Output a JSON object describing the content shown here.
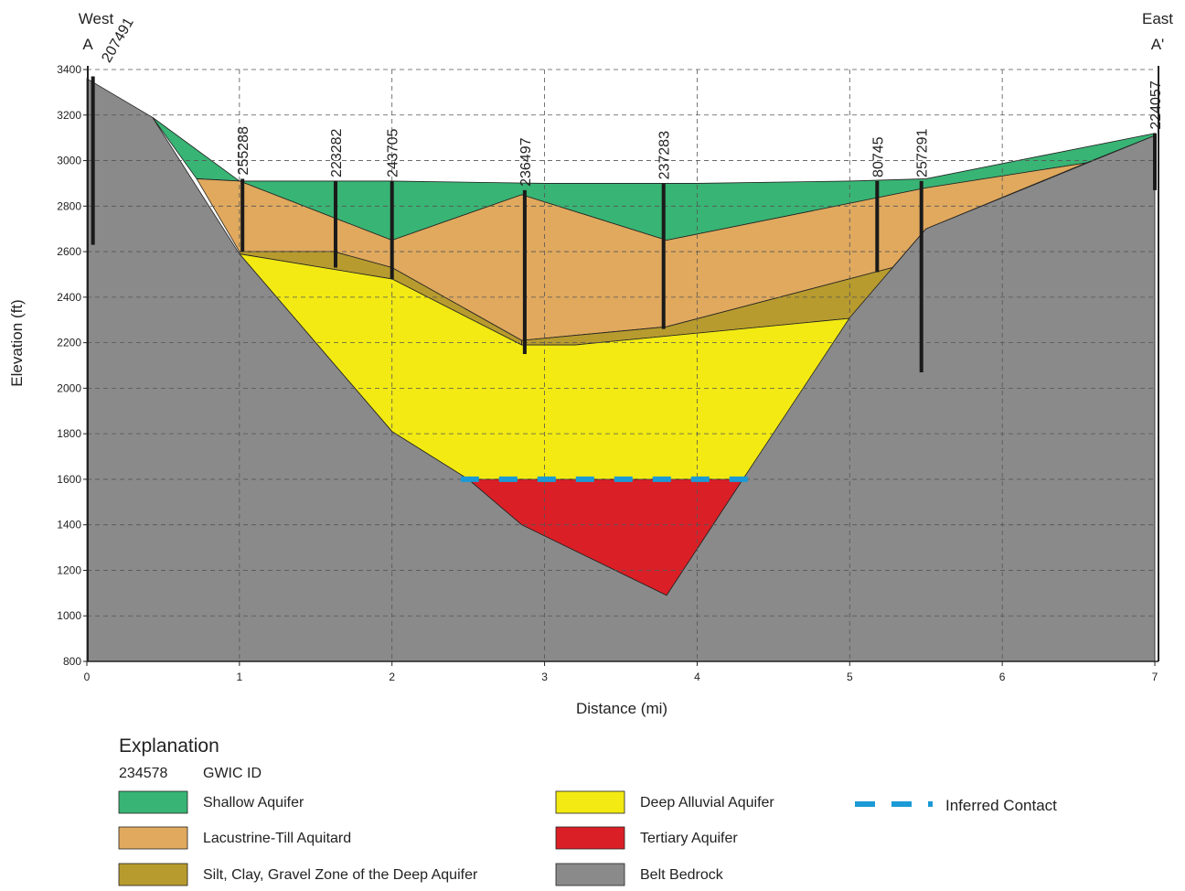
{
  "chart_data": {
    "type": "cross-section",
    "title_left": "West",
    "label_left": "A",
    "title_right": "East",
    "label_right": "A'",
    "x_label": "Distance (mi)",
    "y_label": "Elevation (ft)",
    "xlim": [
      0,
      7
    ],
    "ylim": [
      800,
      3400
    ],
    "xticks": [
      0,
      1,
      2,
      3,
      4,
      5,
      6,
      7
    ],
    "yticks": [
      800,
      1000,
      1200,
      1400,
      1600,
      1800,
      2000,
      2200,
      2400,
      2600,
      2800,
      3000,
      3200,
      3400
    ],
    "grid": true,
    "layers": [
      {
        "name": "Shallow Aquifer",
        "color": "#38b474",
        "polygons": [
          {
            "x": [
              0.43,
              1.0,
              2.0,
              3.0,
              4.0,
              5.0,
              5.5,
              7.0,
              7.0,
              6.55,
              5.5,
              3.8,
              2.85,
              2.0,
              1.0,
              0.72
            ],
            "y": [
              3190,
              2910,
              2910,
              2900,
              2900,
              2910,
              2920,
              3120,
              3110,
              2990,
              2880,
              2650,
              2850,
              2650,
              2910,
              2920
            ]
          }
        ]
      },
      {
        "name": "Lacustrine-Till Aquitard",
        "color": "#e0a95e",
        "polygons": [
          {
            "x": [
              0.72,
              1.0,
              2.0,
              2.85,
              3.8,
              5.5,
              6.55,
              5.5,
              5.28,
              3.8,
              2.85,
              2.0,
              1.62,
              1.0
            ],
            "y": [
              2920,
              2910,
              2650,
              2850,
              2650,
              2880,
              2990,
              2700,
              2530,
              2270,
              2210,
              2530,
              2600,
              2600
            ]
          }
        ]
      },
      {
        "name": "Silt, Clay, Gravel Zone of the Deep Aquifer",
        "color": "#b79b2e",
        "polygons": [
          {
            "x": [
              1.0,
              1.62,
              2.0,
              2.85,
              2.85,
              2.0,
              1.0
            ],
            "y": [
              2600,
              2600,
              2530,
              2210,
              2190,
              2480,
              2590
            ]
          },
          {
            "x": [
              2.85,
              3.8,
              5.28,
              5.05,
              3.2,
              2.85
            ],
            "y": [
              2210,
              2270,
              2530,
              2310,
              2190,
              2190
            ]
          }
        ]
      },
      {
        "name": "Deep Alluvial Aquifer",
        "color": "#f2ea12",
        "polygons": [
          {
            "x": [
              1.0,
              2.0,
              2.85,
              3.2,
              5.05,
              4.3,
              2.5,
              2.0
            ],
            "y": [
              2590,
              2480,
              2190,
              2190,
              2310,
              1600,
              1600,
              1810
            ]
          }
        ]
      },
      {
        "name": "Tertiary Aquifer",
        "color": "#db1f26",
        "polygons": [
          {
            "x": [
              2.5,
              4.3,
              3.8,
              2.85
            ],
            "y": [
              1600,
              1600,
              1090,
              1400
            ]
          }
        ]
      },
      {
        "name": "Belt Bedrock",
        "color": "#8a8a8a",
        "polygons": [
          {
            "x": [
              0,
              0.43,
              1.0,
              2.0,
              2.5,
              2.85,
              3.8,
              4.3,
              5.0,
              5.5,
              7.0,
              7.0,
              0
            ],
            "y": [
              3360,
              3190,
              2590,
              1810,
              1600,
              1400,
              1090,
              1600,
              2310,
              2700,
              3110,
              800,
              800
            ]
          }
        ]
      }
    ],
    "wells": [
      {
        "id": "207491",
        "x": 0.04,
        "top": 3370,
        "bottom": 2630
      },
      {
        "id": "255288",
        "x": 1.02,
        "top": 2920,
        "bottom": 2600
      },
      {
        "id": "223282",
        "x": 1.63,
        "top": 2910,
        "bottom": 2530
      },
      {
        "id": "243705",
        "x": 2.0,
        "top": 2910,
        "bottom": 2480
      },
      {
        "id": "236497",
        "x": 2.87,
        "top": 2870,
        "bottom": 2150
      },
      {
        "id": "237283",
        "x": 3.78,
        "top": 2900,
        "bottom": 2260
      },
      {
        "id": "80745",
        "x": 5.18,
        "top": 2910,
        "bottom": 2510
      },
      {
        "id": "257291",
        "x": 5.47,
        "top": 2910,
        "bottom": 2070
      },
      {
        "id": "224057",
        "x": 7.0,
        "top": 3120,
        "bottom": 2870
      }
    ],
    "contact": {
      "name": "Inferred Contact",
      "color": "#1a9ad6",
      "x": [
        2.45,
        4.35
      ],
      "y": [
        1600,
        1600
      ]
    },
    "legend_title": "Explanation",
    "legend_id_example": "234578",
    "legend_id_label": "GWIC ID"
  }
}
